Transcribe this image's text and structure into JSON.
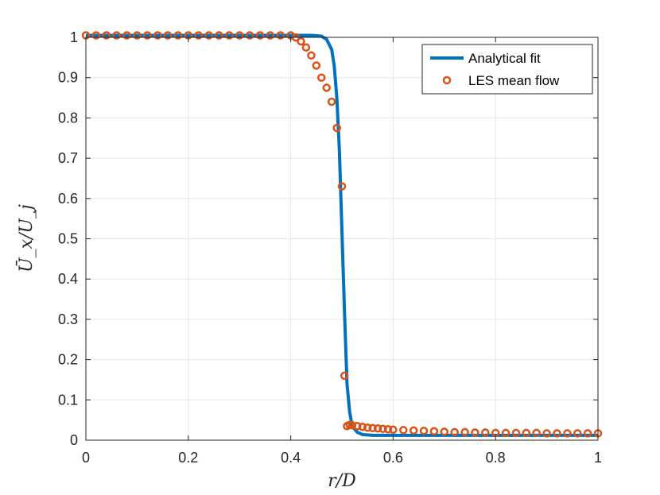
{
  "chart_data": {
    "type": "line",
    "xlabel": "r/D",
    "ylabel": "Ū_x/U_j",
    "xlim": [
      0,
      1
    ],
    "ylim": [
      0,
      1
    ],
    "xticks": [
      0,
      0.2,
      0.4,
      0.6,
      0.8,
      1
    ],
    "xtick_labels": [
      "0",
      "0.2",
      "0.4",
      "0.6",
      "0.8",
      "1"
    ],
    "yticks": [
      0,
      0.1,
      0.2,
      0.3,
      0.4,
      0.5,
      0.6,
      0.7,
      0.8,
      0.9,
      1
    ],
    "ytick_labels": [
      "0",
      "0.1",
      "0.2",
      "0.3",
      "0.4",
      "0.5",
      "0.6",
      "0.7",
      "0.8",
      "0.9",
      "1"
    ],
    "grid": true,
    "legend_position": "top-right",
    "colors": {
      "line": "#0072BD",
      "markers": "#D95319",
      "axis": "#262626",
      "grid": "#e6e6e6"
    },
    "series": [
      {
        "name": "Analytical fit",
        "style": "line",
        "x": [
          0,
          0.1,
          0.2,
          0.3,
          0.4,
          0.44,
          0.46,
          0.47,
          0.48,
          0.485,
          0.49,
          0.495,
          0.5,
          0.505,
          0.51,
          0.515,
          0.52,
          0.53,
          0.54,
          0.56,
          0.6,
          0.8,
          1.0
        ],
        "y": [
          1.005,
          1.005,
          1.005,
          1.005,
          1.005,
          1.005,
          1.003,
          0.995,
          0.97,
          0.93,
          0.85,
          0.72,
          0.52,
          0.32,
          0.14,
          0.07,
          0.035,
          0.02,
          0.014,
          0.012,
          0.012,
          0.012,
          0.012
        ]
      },
      {
        "name": "LES mean flow",
        "style": "markers",
        "x": [
          0,
          0.02,
          0.04,
          0.06,
          0.08,
          0.1,
          0.12,
          0.14,
          0.16,
          0.18,
          0.2,
          0.22,
          0.24,
          0.26,
          0.28,
          0.3,
          0.32,
          0.34,
          0.36,
          0.38,
          0.4,
          0.41,
          0.42,
          0.43,
          0.44,
          0.45,
          0.46,
          0.47,
          0.48,
          0.49,
          0.5,
          0.505,
          0.51,
          0.515,
          0.52,
          0.53,
          0.54,
          0.55,
          0.56,
          0.57,
          0.58,
          0.59,
          0.6,
          0.62,
          0.64,
          0.66,
          0.68,
          0.7,
          0.72,
          0.74,
          0.76,
          0.78,
          0.8,
          0.82,
          0.84,
          0.86,
          0.88,
          0.9,
          0.92,
          0.94,
          0.96,
          0.98,
          1.0
        ],
        "y": [
          1.005,
          1.005,
          1.005,
          1.005,
          1.005,
          1.005,
          1.005,
          1.005,
          1.005,
          1.005,
          1.005,
          1.005,
          1.005,
          1.005,
          1.005,
          1.005,
          1.005,
          1.005,
          1.005,
          1.005,
          1.005,
          1.0,
          0.99,
          0.975,
          0.955,
          0.93,
          0.9,
          0.875,
          0.84,
          0.775,
          0.63,
          0.16,
          0.035,
          0.038,
          0.037,
          0.035,
          0.033,
          0.031,
          0.03,
          0.029,
          0.028,
          0.027,
          0.026,
          0.025,
          0.024,
          0.023,
          0.022,
          0.021,
          0.02,
          0.02,
          0.019,
          0.019,
          0.018,
          0.018,
          0.018,
          0.018,
          0.018,
          0.017,
          0.017,
          0.017,
          0.017,
          0.017,
          0.017
        ]
      }
    ]
  }
}
